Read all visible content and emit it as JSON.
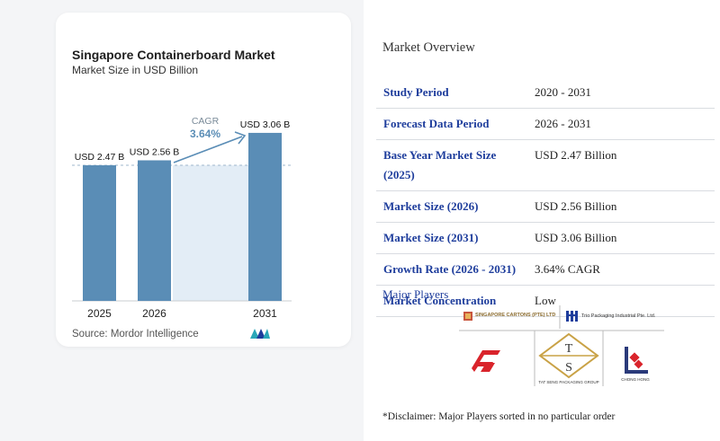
{
  "chart": {
    "title": "Singapore Containerboard Market",
    "subtitle": "Market Size in USD Billion",
    "source": "Source: Mordor Intelligence",
    "cagr_label": "CAGR",
    "cagr_value": "3.64%"
  },
  "chart_data": {
    "type": "bar",
    "categories": [
      "2025",
      "2026",
      "2031"
    ],
    "values": [
      2.47,
      2.56,
      3.06
    ],
    "data_labels": [
      "USD 2.47 B",
      "USD 2.56 B",
      "USD 3.06 B"
    ],
    "title": "Singapore Containerboard Market",
    "subtitle": "Market Size in USD Billion",
    "annotations": [
      "CAGR",
      "3.64%"
    ],
    "colors": {
      "bar": "#5a8db6",
      "arrow": "#5a8db6",
      "band": "#e3edf6"
    }
  },
  "overview": {
    "title": "Market Overview",
    "rows": [
      {
        "label": "Study Period",
        "value": "2020 - 2031"
      },
      {
        "label": "Forecast Data Period",
        "value": "2026 - 2031"
      },
      {
        "label": "Base Year Market Size (2025)",
        "value": "USD 2.47 Billion"
      },
      {
        "label": "Market Size (2026)",
        "value": "USD 2.56 Billion"
      },
      {
        "label": "Market Size (2031)",
        "value": "USD 3.06 Billion"
      },
      {
        "label": "Growth Rate (2026 - 2031)",
        "value": "3.64% CAGR"
      },
      {
        "label": "Market Concentration",
        "value": "Low"
      }
    ],
    "players_title": "Major Players",
    "players": [
      {
        "name": "SINGAPORE CARTONS (PTE) LTD"
      },
      {
        "name": "Trio Packaging Industrial Pte. Ltd."
      },
      {
        "name": "TAT SENG PACKAGING GROUP"
      },
      {
        "name": "CHONG HONG"
      }
    ],
    "disclaimer": "*Disclaimer: Major Players sorted in no particular order"
  },
  "colors": {
    "heading_blue": "#1e3d9c",
    "bar": "#5a8db6",
    "row_divider": "#d9dce1"
  }
}
